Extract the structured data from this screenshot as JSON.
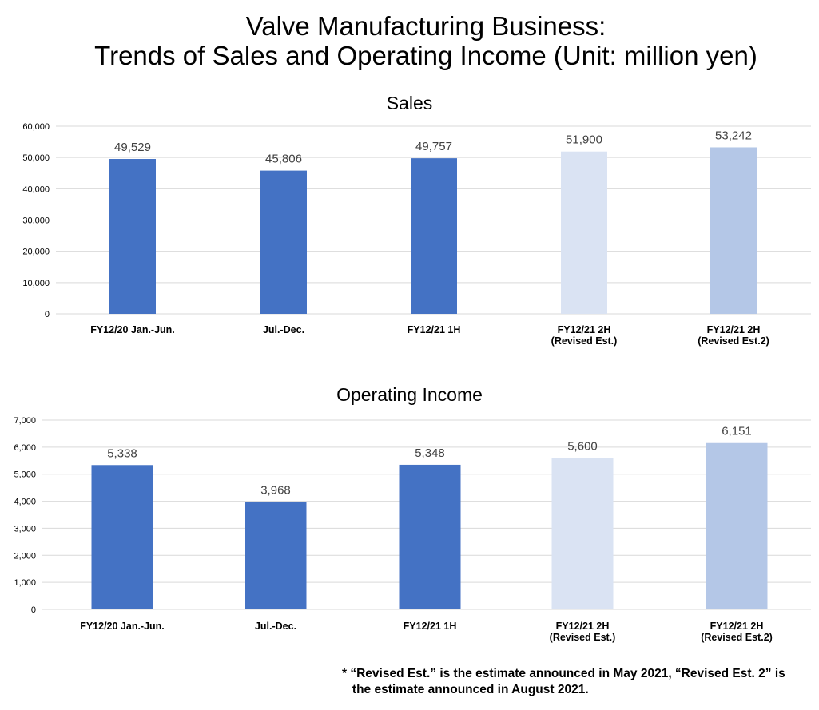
{
  "title_line1": "Valve Manufacturing Business:",
  "title_line2": "Trends of Sales and Operating Income (Unit: million yen)",
  "chart_data": [
    {
      "type": "bar",
      "title": "Sales",
      "categories": [
        [
          "FY12/20 Jan.-Jun."
        ],
        [
          "Jul.-Dec."
        ],
        [
          "FY12/21 1H"
        ],
        [
          "FY12/21 2H",
          "(Revised Est.)"
        ],
        [
          "FY12/21 2H",
          "(Revised Est.2)"
        ]
      ],
      "values": [
        49529,
        45806,
        49757,
        51900,
        53242
      ],
      "data_labels": [
        "49,529",
        "45,806",
        "49,757",
        "51,900",
        "53,242"
      ],
      "bar_colors": [
        "#4472c4",
        "#4472c4",
        "#4472c4",
        "#dae3f3",
        "#b4c7e7"
      ],
      "ylim": [
        0,
        60000
      ],
      "yticks": [
        0,
        10000,
        20000,
        30000,
        40000,
        50000,
        60000
      ],
      "ytick_labels": [
        "0",
        "10,000",
        "20,000",
        "30,000",
        "40,000",
        "50,000",
        "60,000"
      ],
      "grid": true
    },
    {
      "type": "bar",
      "title": "Operating Income",
      "categories": [
        [
          "FY12/20 Jan.-Jun."
        ],
        [
          "Jul.-Dec."
        ],
        [
          "FY12/21 1H"
        ],
        [
          "FY12/21 2H",
          "(Revised Est.)"
        ],
        [
          "FY12/21 2H",
          "(Revised Est.2)"
        ]
      ],
      "values": [
        5338,
        3968,
        5348,
        5600,
        6151
      ],
      "data_labels": [
        "5,338",
        "3,968",
        "5,348",
        "5,600",
        "6,151"
      ],
      "bar_colors": [
        "#4472c4",
        "#4472c4",
        "#4472c4",
        "#dae3f3",
        "#b4c7e7"
      ],
      "ylim": [
        0,
        7000
      ],
      "yticks": [
        0,
        1000,
        2000,
        3000,
        4000,
        5000,
        6000,
        7000
      ],
      "ytick_labels": [
        "0",
        "1,000",
        "2,000",
        "3,000",
        "4,000",
        "5,000",
        "6,000",
        "7,000"
      ],
      "grid": true
    }
  ],
  "footnote_line1": "* “Revised Est.” is the estimate announced in May 2021, “Revised Est. 2” is",
  "footnote_line2": "   the estimate announced in August 2021."
}
